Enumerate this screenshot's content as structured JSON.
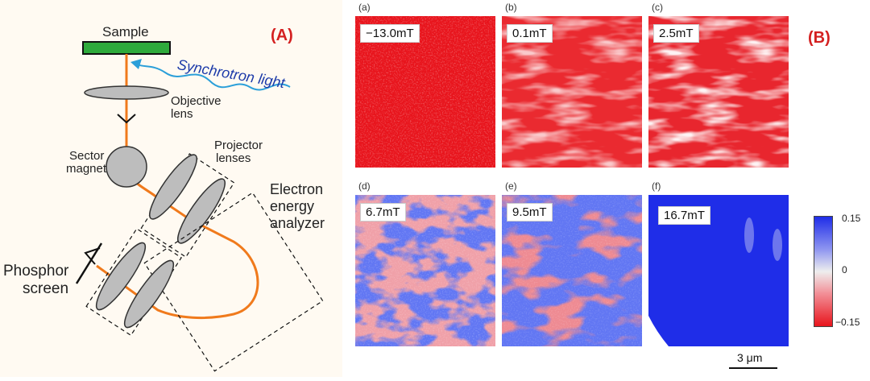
{
  "panel_a": {
    "tag": "(A)",
    "labels": {
      "sample": "Sample",
      "synchrotron": "Synchrotron light",
      "objective_1": "Objective",
      "objective_2": "lens",
      "sector_1": "Sector",
      "sector_2": "magnet",
      "projector_1": "Projector",
      "projector_2": "lenses",
      "analyzer_1": "Electron",
      "analyzer_2": "energy",
      "analyzer_3": "analyzer",
      "phosphor_1": "Phosphor",
      "phosphor_2": "screen"
    },
    "colors": {
      "sample": "#2eaa3c",
      "beam": "#f07a1c",
      "light": "#2b9fd9",
      "lens": "#bdbdbd"
    }
  },
  "panel_b": {
    "tag": "(B)",
    "maps": [
      {
        "letter": "(a)",
        "field": "−13.0mT"
      },
      {
        "letter": "(b)",
        "field": "0.1mT"
      },
      {
        "letter": "(c)",
        "field": "2.5mT"
      },
      {
        "letter": "(d)",
        "field": "6.7mT"
      },
      {
        "letter": "(e)",
        "field": "9.5mT"
      },
      {
        "letter": "(f)",
        "field": "16.7mT"
      }
    ],
    "colorbar": {
      "max": "0.15",
      "mid": "0",
      "min": "−0.15",
      "colors": [
        "#1f2de8",
        "#eeeeee",
        "#e8141c"
      ]
    },
    "scalebar": "3 μm"
  }
}
